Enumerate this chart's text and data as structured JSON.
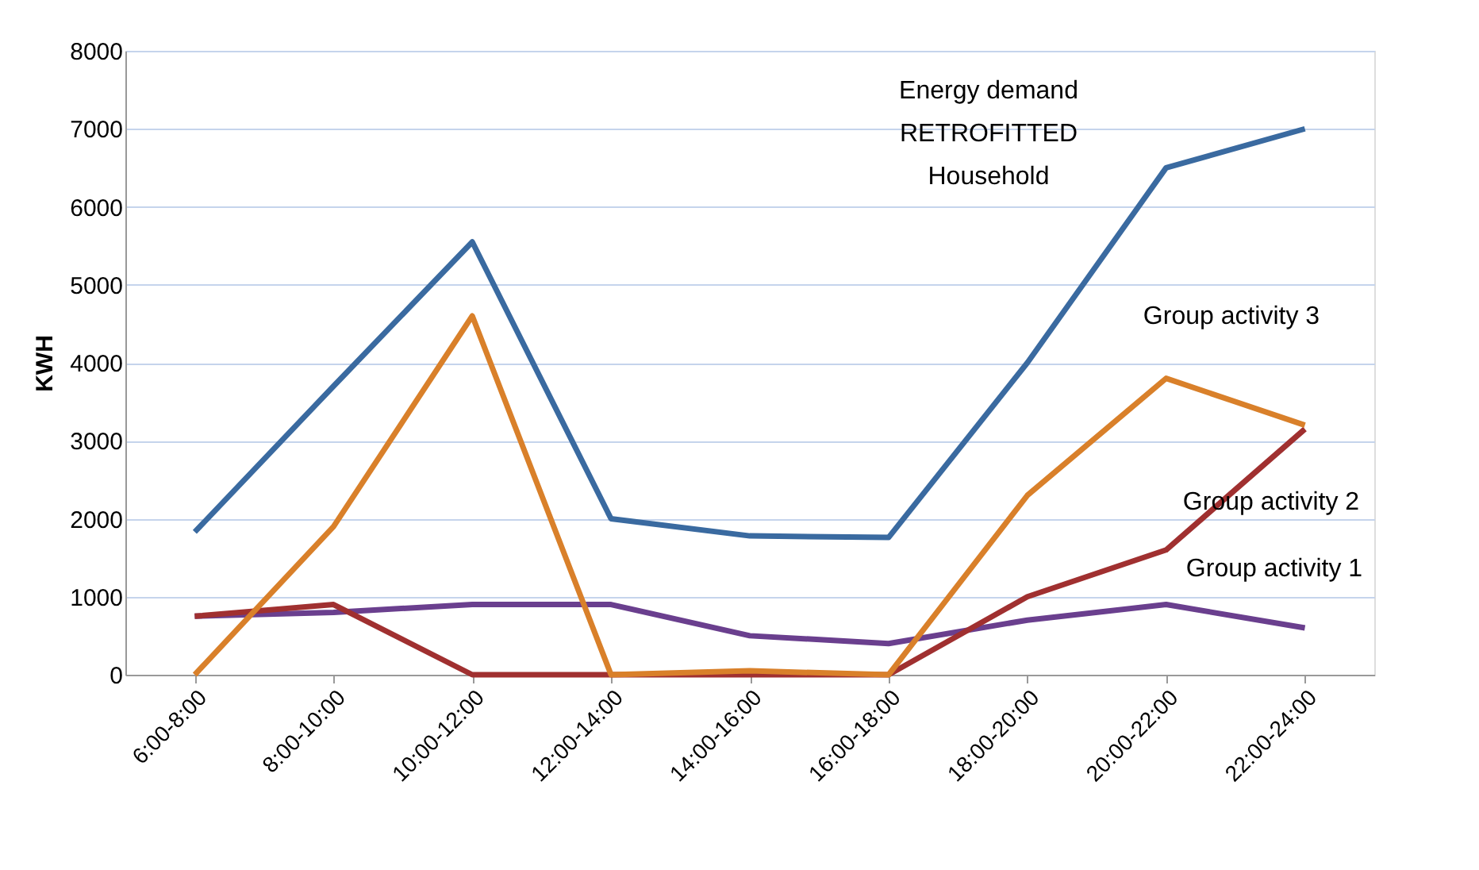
{
  "chart_data": {
    "type": "line",
    "ylabel": "KWH",
    "categories": [
      "6:00-8:00",
      "8:00-10:00",
      "10:00-12:00",
      "12:00-14:00",
      "14:00-16:00",
      "16:00-18:00",
      "18:00-20:00",
      "20:00-22:00",
      "22:00-24:00"
    ],
    "series": [
      {
        "name": "Group activity 1",
        "color": "#6a3f8e",
        "values": [
          750,
          800,
          900,
          900,
          500,
          400,
          700,
          900,
          600
        ]
      },
      {
        "name": "Group activity 2",
        "color": "#a03030",
        "values": [
          750,
          900,
          0,
          0,
          0,
          0,
          1000,
          1600,
          3150
        ]
      },
      {
        "name": "Group activity 3",
        "color": "#d9802a",
        "values": [
          0,
          1900,
          4600,
          0,
          50,
          0,
          2300,
          3800,
          3200
        ]
      },
      {
        "name": "Energy demand RETROFITTED Household",
        "color": "#3a6aa0",
        "values": [
          1830,
          3700,
          5550,
          2000,
          1780,
          1760,
          4000,
          6500,
          7000
        ]
      }
    ],
    "ylim": [
      0,
      8000
    ],
    "yticks": [
      0,
      1000,
      2000,
      3000,
      4000,
      5000,
      6000,
      7000,
      8000
    ],
    "grid": "y",
    "legend": false,
    "marker": "none",
    "line_style": "solid"
  }
}
